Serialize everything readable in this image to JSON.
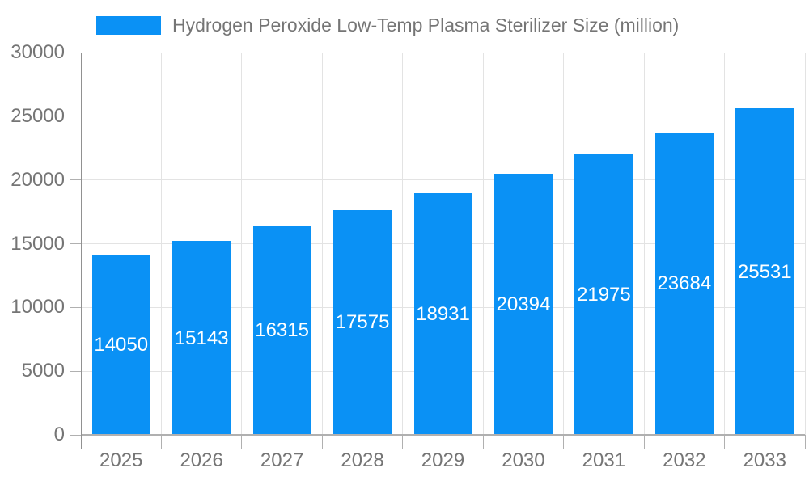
{
  "legend": {
    "label": "Hydrogen Peroxide Low-Temp Plasma Sterilizer Size (million)",
    "swatch_color": "#0a91f5"
  },
  "chart_data": {
    "type": "bar",
    "title": "Hydrogen Peroxide Low-Temp Plasma Sterilizer Size (million)",
    "series_name": "Hydrogen Peroxide Low-Temp Plasma Sterilizer Size (million)",
    "categories": [
      "2025",
      "2026",
      "2027",
      "2028",
      "2029",
      "2030",
      "2031",
      "2032",
      "2033"
    ],
    "values": [
      14050,
      15143,
      16315,
      17575,
      18931,
      20394,
      21975,
      23684,
      25531
    ],
    "yticks": [
      0,
      5000,
      10000,
      15000,
      20000,
      25000,
      30000
    ],
    "ylim": [
      0,
      30000
    ],
    "xlabel": "",
    "ylabel": "",
    "grid": true,
    "legend_position": "top-left",
    "bar_color": "#0a91f5",
    "value_label_color": "#ffffff",
    "axis_label_color": "#757575",
    "gridline_color": "#e3e3e3"
  }
}
